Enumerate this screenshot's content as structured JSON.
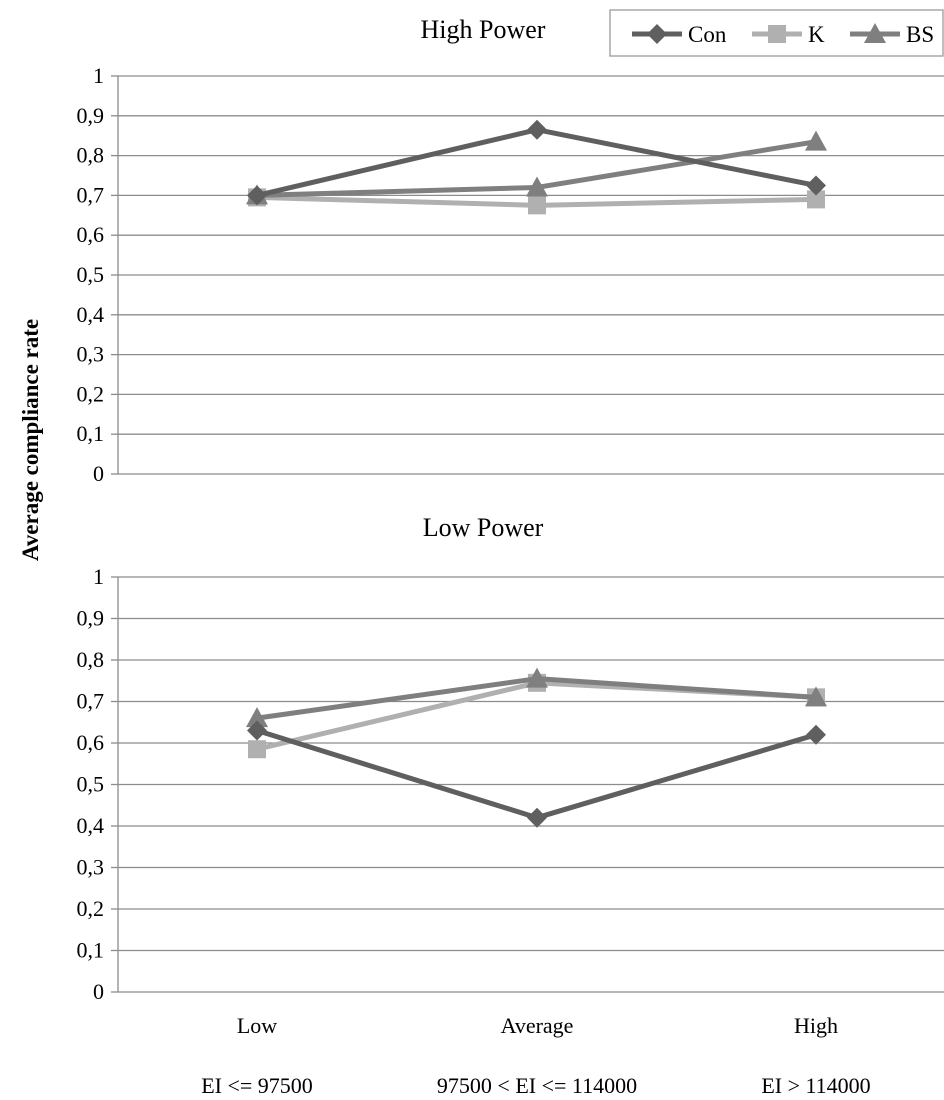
{
  "colors": {
    "Con": "#5f5f5f",
    "K": "#b0b0b0",
    "BS": "#7f7f7f",
    "grid": "#8c8c8c",
    "axis": "#8c8c8c"
  },
  "chart_data": {
    "type": "line",
    "ylabel": "Average    compliance rate",
    "categories": [
      "Low",
      "Average",
      "High"
    ],
    "category_ranges": [
      "EI <= 97500",
      "97500 < EI <= 114000",
      "EI > 114000"
    ],
    "ylim": [
      0,
      1
    ],
    "yticks": [
      "0",
      "0,1",
      "0,2",
      "0,3",
      "0,4",
      "0,5",
      "0,6",
      "0,7",
      "0,8",
      "0,9",
      "1"
    ],
    "grid": true,
    "legend": {
      "placement": "top-right",
      "entries": [
        {
          "name": "Con",
          "marker": "diamond"
        },
        {
          "name": "K",
          "marker": "square"
        },
        {
          "name": "BS",
          "marker": "triangle"
        }
      ]
    },
    "panels": [
      {
        "title": "High Power",
        "series": [
          {
            "name": "Con",
            "values": [
              0.7,
              0.865,
              0.725
            ]
          },
          {
            "name": "K",
            "values": [
              0.695,
              0.675,
              0.69
            ]
          },
          {
            "name": "BS",
            "values": [
              0.7,
              0.72,
              0.835
            ]
          }
        ]
      },
      {
        "title": "Low Power",
        "series": [
          {
            "name": "Con",
            "values": [
              0.63,
              0.42,
              0.62
            ]
          },
          {
            "name": "K",
            "values": [
              0.585,
              0.745,
              0.71
            ]
          },
          {
            "name": "BS",
            "values": [
              0.66,
              0.755,
              0.71
            ]
          }
        ]
      }
    ]
  }
}
